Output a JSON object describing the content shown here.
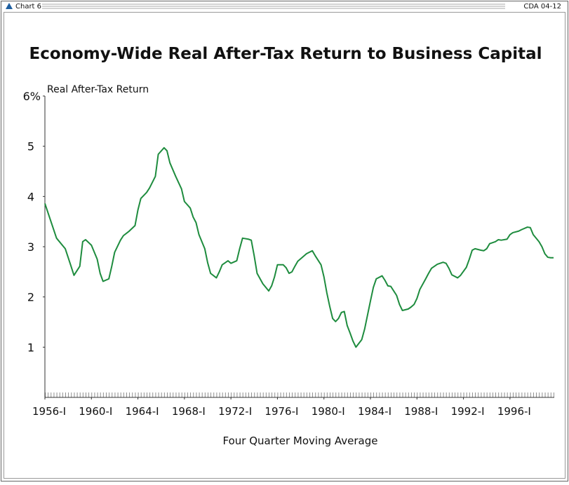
{
  "header": {
    "left": "Chart 6",
    "right": "CDA 04-12"
  },
  "chart_data": {
    "type": "line",
    "title": "Economy-Wide Real After-Tax Return to Business Capital",
    "y_axis_label": "Real After-Tax Return",
    "note": "Four Quarter Moving Average",
    "x": [
      1956.0,
      1957.0,
      1957.75,
      1958.25,
      1958.5,
      1959.0,
      1959.25,
      1959.5,
      1960.0,
      1960.5,
      1960.75,
      1961.0,
      1961.5,
      1961.75,
      1962.0,
      1962.5,
      1962.75,
      1963.25,
      1963.75,
      1964.0,
      1964.25,
      1964.75,
      1965.0,
      1965.5,
      1965.75,
      1966.25,
      1966.5,
      1966.75,
      1967.25,
      1967.75,
      1968.0,
      1968.5,
      1968.75,
      1969.0,
      1969.25,
      1969.75,
      1970.0,
      1970.25,
      1970.75,
      1971.0,
      1971.25,
      1971.75,
      1972.0,
      1972.5,
      1972.75,
      1973.0,
      1973.5,
      1973.75,
      1974.0,
      1974.25,
      1974.75,
      1975.25,
      1975.5,
      1975.75,
      1976.0,
      1976.5,
      1976.75,
      1977.0,
      1977.25,
      1977.5,
      1977.75,
      1978.25,
      1978.5,
      1979.0,
      1979.25,
      1979.75,
      1980.0,
      1980.25,
      1980.5,
      1980.75,
      1981.0,
      1981.25,
      1981.5,
      1981.75,
      1982.0,
      1982.25,
      1982.5,
      1982.75,
      1983.25,
      1983.5,
      1983.75,
      1984.0,
      1984.25,
      1984.5,
      1985.0,
      1985.25,
      1985.5,
      1985.75,
      1986.0,
      1986.25,
      1986.5,
      1986.75,
      1987.25,
      1987.5,
      1987.75,
      1988.0,
      1988.25,
      1988.75,
      1989.0,
      1989.25,
      1989.75,
      1990.25,
      1990.5,
      1990.75,
      1991.0,
      1991.5,
      1991.75,
      1992.25,
      1992.5,
      1992.75,
      1993.0,
      1993.5,
      1993.75,
      1994.0,
      1994.25,
      1994.75,
      1995.0,
      1995.25,
      1995.75,
      1996.0,
      1996.25,
      1996.75,
      1997.0,
      1997.5,
      1997.75,
      1998.0,
      1998.5,
      1998.75,
      1999.0,
      1999.25,
      1999.5,
      1999.75
    ],
    "series": [
      {
        "name": "Real After-Tax Return",
        "color": "#1e8c3e",
        "values": [
          3.86,
          3.17,
          2.96,
          2.61,
          2.43,
          2.61,
          3.1,
          3.14,
          3.03,
          2.75,
          2.47,
          2.31,
          2.36,
          2.61,
          2.89,
          3.13,
          3.22,
          3.31,
          3.42,
          3.73,
          3.96,
          4.08,
          4.17,
          4.4,
          4.84,
          4.97,
          4.91,
          4.67,
          4.4,
          4.15,
          3.9,
          3.77,
          3.59,
          3.48,
          3.24,
          2.96,
          2.68,
          2.47,
          2.38,
          2.5,
          2.64,
          2.72,
          2.67,
          2.72,
          2.96,
          3.17,
          3.15,
          3.13,
          2.82,
          2.47,
          2.26,
          2.12,
          2.22,
          2.4,
          2.64,
          2.64,
          2.58,
          2.47,
          2.5,
          2.61,
          2.71,
          2.81,
          2.86,
          2.92,
          2.82,
          2.64,
          2.4,
          2.08,
          1.81,
          1.57,
          1.51,
          1.57,
          1.69,
          1.71,
          1.43,
          1.28,
          1.12,
          1.0,
          1.15,
          1.36,
          1.64,
          1.92,
          2.19,
          2.36,
          2.42,
          2.33,
          2.22,
          2.21,
          2.12,
          2.03,
          1.85,
          1.73,
          1.76,
          1.8,
          1.85,
          1.97,
          2.15,
          2.36,
          2.47,
          2.57,
          2.65,
          2.69,
          2.67,
          2.57,
          2.44,
          2.38,
          2.43,
          2.59,
          2.75,
          2.93,
          2.96,
          2.93,
          2.92,
          2.96,
          3.06,
          3.1,
          3.14,
          3.13,
          3.15,
          3.24,
          3.28,
          3.31,
          3.34,
          3.39,
          3.38,
          3.24,
          3.1,
          3.0,
          2.86,
          2.79,
          2.78,
          2.78
        ]
      }
    ],
    "xlim": [
      1956,
      1999.75
    ],
    "xticks": [
      {
        "value": 1956,
        "label": "1956-I"
      },
      {
        "value": 1960,
        "label": "1960-I"
      },
      {
        "value": 1964,
        "label": "1964-I"
      },
      {
        "value": 1968,
        "label": "1968-I"
      },
      {
        "value": 1972,
        "label": "1972-I"
      },
      {
        "value": 1976,
        "label": "1976-I"
      },
      {
        "value": 1980,
        "label": "1980-I"
      },
      {
        "value": 1984,
        "label": "1984-I"
      },
      {
        "value": 1988,
        "label": "1988-I"
      },
      {
        "value": 1992,
        "label": "1992-I"
      },
      {
        "value": 1996,
        "label": "1996-I"
      }
    ],
    "ylim": [
      0,
      6
    ],
    "yticks": [
      {
        "value": 6,
        "label": "6%"
      },
      5,
      4,
      3,
      2,
      1
    ],
    "grid": false
  }
}
